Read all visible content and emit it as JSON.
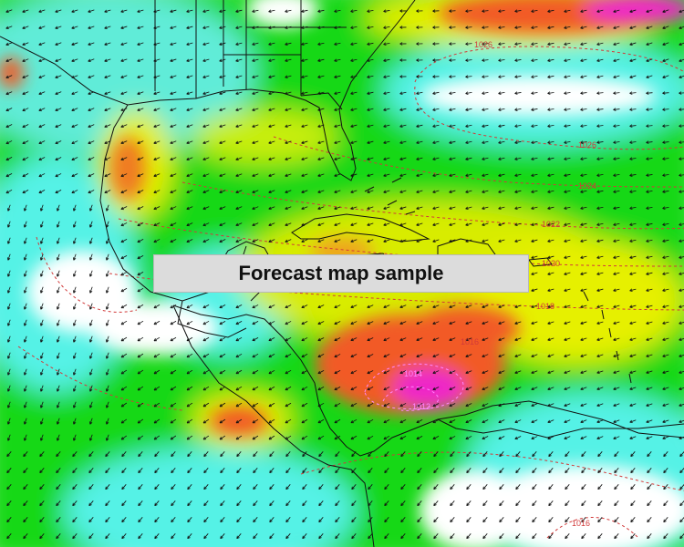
{
  "banner": {
    "text": "Forecast map sample"
  },
  "isobar_labels": [
    "1026",
    "1026",
    "1024",
    "1022",
    "1020",
    "1018",
    "1016",
    "1014",
    "1012",
    "1016"
  ],
  "colors": {
    "background": "#ffffff",
    "wind_light": "#54f2e6",
    "wind_moderate": "#18d818",
    "wind_fresh": "#e6f000",
    "wind_strong": "#f25a28",
    "wind_gale": "#ee28c8",
    "isobar": "#d23a3a",
    "isobar_low": "#ff88ff",
    "land_outline": "#111111",
    "arrow": "#111111",
    "banner_bg": "#dcdcdc"
  },
  "legend_note": "",
  "icons": [
    "wind-arrow-icon"
  ]
}
